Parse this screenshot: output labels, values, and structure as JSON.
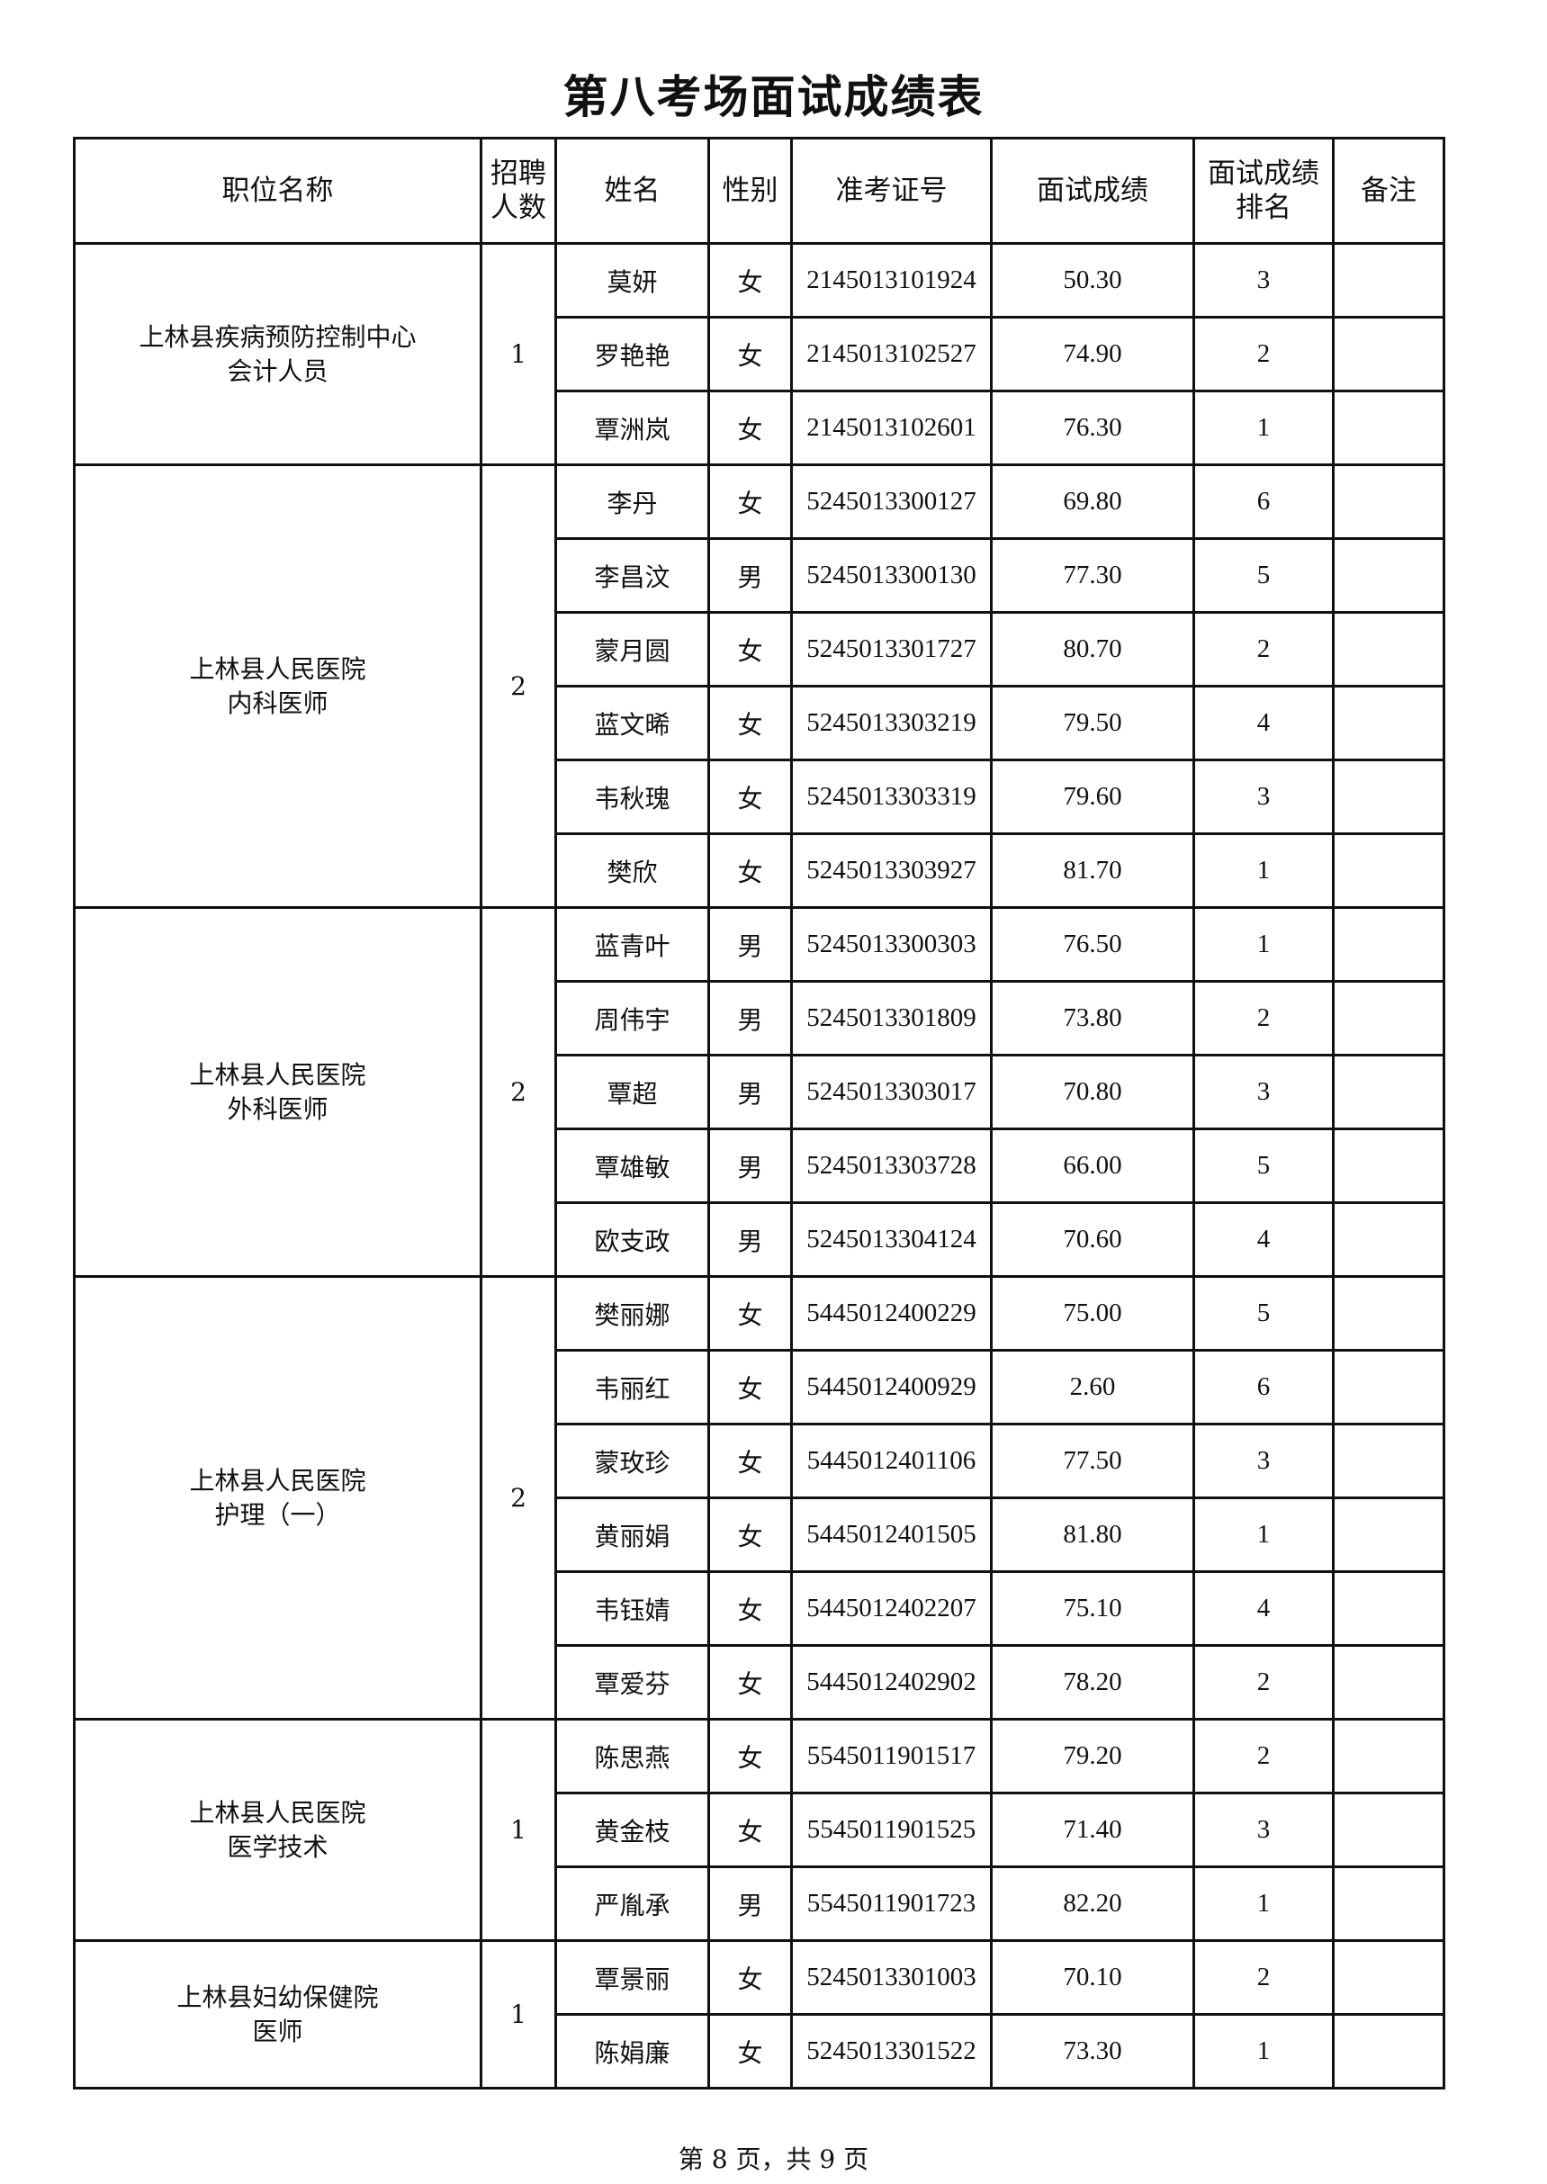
{
  "title": "第八考场面试成绩表",
  "headers": {
    "position": "职位名称",
    "quota": "招聘人数",
    "name": "姓名",
    "gender": "性别",
    "exam_id": "准考证号",
    "score": "面试成绩",
    "rank": "面试成绩排名",
    "remark": "备注"
  },
  "groups": [
    {
      "position": [
        "上林县疾病预防控制中心",
        "会计人员"
      ],
      "quota": "1",
      "rows": [
        {
          "name": "莫妍",
          "gender": "女",
          "exam_id": "2145013101924",
          "score": "50.30",
          "rank": "3",
          "remark": ""
        },
        {
          "name": "罗艳艳",
          "gender": "女",
          "exam_id": "2145013102527",
          "score": "74.90",
          "rank": "2",
          "remark": ""
        },
        {
          "name": "覃洲岚",
          "gender": "女",
          "exam_id": "2145013102601",
          "score": "76.30",
          "rank": "1",
          "remark": ""
        }
      ]
    },
    {
      "position": [
        "上林县人民医院",
        "内科医师"
      ],
      "quota": "2",
      "rows": [
        {
          "name": "李丹",
          "gender": "女",
          "exam_id": "5245013300127",
          "score": "69.80",
          "rank": "6",
          "remark": ""
        },
        {
          "name": "李昌汶",
          "gender": "男",
          "exam_id": "5245013300130",
          "score": "77.30",
          "rank": "5",
          "remark": ""
        },
        {
          "name": "蒙月圆",
          "gender": "女",
          "exam_id": "5245013301727",
          "score": "80.70",
          "rank": "2",
          "remark": ""
        },
        {
          "name": "蓝文晞",
          "gender": "女",
          "exam_id": "5245013303219",
          "score": "79.50",
          "rank": "4",
          "remark": ""
        },
        {
          "name": "韦秋瑰",
          "gender": "女",
          "exam_id": "5245013303319",
          "score": "79.60",
          "rank": "3",
          "remark": ""
        },
        {
          "name": "樊欣",
          "gender": "女",
          "exam_id": "5245013303927",
          "score": "81.70",
          "rank": "1",
          "remark": ""
        }
      ]
    },
    {
      "position": [
        "上林县人民医院",
        "外科医师"
      ],
      "quota": "2",
      "rows": [
        {
          "name": "蓝青叶",
          "gender": "男",
          "exam_id": "5245013300303",
          "score": "76.50",
          "rank": "1",
          "remark": ""
        },
        {
          "name": "周伟宇",
          "gender": "男",
          "exam_id": "5245013301809",
          "score": "73.80",
          "rank": "2",
          "remark": ""
        },
        {
          "name": "覃超",
          "gender": "男",
          "exam_id": "5245013303017",
          "score": "70.80",
          "rank": "3",
          "remark": ""
        },
        {
          "name": "覃雄敏",
          "gender": "男",
          "exam_id": "5245013303728",
          "score": "66.00",
          "rank": "5",
          "remark": ""
        },
        {
          "name": "欧支政",
          "gender": "男",
          "exam_id": "5245013304124",
          "score": "70.60",
          "rank": "4",
          "remark": ""
        }
      ]
    },
    {
      "position": [
        "上林县人民医院",
        "护理（一）"
      ],
      "quota": "2",
      "rows": [
        {
          "name": "樊丽娜",
          "gender": "女",
          "exam_id": "5445012400229",
          "score": "75.00",
          "rank": "5",
          "remark": ""
        },
        {
          "name": "韦丽红",
          "gender": "女",
          "exam_id": "5445012400929",
          "score": "2.60",
          "rank": "6",
          "remark": ""
        },
        {
          "name": "蒙玫珍",
          "gender": "女",
          "exam_id": "5445012401106",
          "score": "77.50",
          "rank": "3",
          "remark": ""
        },
        {
          "name": "黄丽娟",
          "gender": "女",
          "exam_id": "5445012401505",
          "score": "81.80",
          "rank": "1",
          "remark": ""
        },
        {
          "name": "韦钰婧",
          "gender": "女",
          "exam_id": "5445012402207",
          "score": "75.10",
          "rank": "4",
          "remark": ""
        },
        {
          "name": "覃爱芬",
          "gender": "女",
          "exam_id": "5445012402902",
          "score": "78.20",
          "rank": "2",
          "remark": ""
        }
      ]
    },
    {
      "position": [
        "上林县人民医院",
        "医学技术"
      ],
      "quota": "1",
      "rows": [
        {
          "name": "陈思燕",
          "gender": "女",
          "exam_id": "5545011901517",
          "score": "79.20",
          "rank": "2",
          "remark": ""
        },
        {
          "name": "黄金枝",
          "gender": "女",
          "exam_id": "5545011901525",
          "score": "71.40",
          "rank": "3",
          "remark": ""
        },
        {
          "name": "严胤承",
          "gender": "男",
          "exam_id": "5545011901723",
          "score": "82.20",
          "rank": "1",
          "remark": ""
        }
      ]
    },
    {
      "position": [
        "上林县妇幼保健院",
        "医师"
      ],
      "quota": "1",
      "rows": [
        {
          "name": "覃景丽",
          "gender": "女",
          "exam_id": "5245013301003",
          "score": "70.10",
          "rank": "2",
          "remark": ""
        },
        {
          "name": "陈娟廉",
          "gender": "女",
          "exam_id": "5245013301522",
          "score": "73.30",
          "rank": "1",
          "remark": ""
        }
      ]
    }
  ],
  "footer": "第 8 页，共 9 页"
}
